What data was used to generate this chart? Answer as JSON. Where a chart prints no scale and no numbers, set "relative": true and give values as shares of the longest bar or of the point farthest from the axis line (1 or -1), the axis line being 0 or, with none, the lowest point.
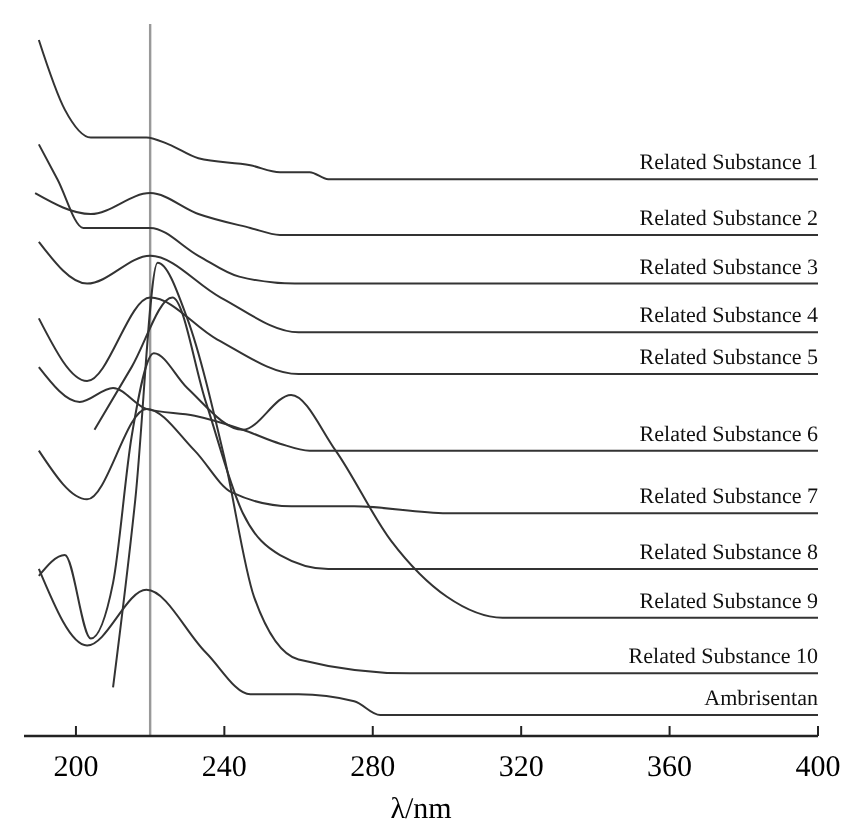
{
  "chart_data": {
    "type": "line",
    "relative": true,
    "xlabel": "λ/nm",
    "xlim": [
      186,
      400
    ],
    "xticks": [
      200,
      240,
      280,
      320,
      360,
      400
    ],
    "grid": false,
    "ref_lines": [
      {
        "axis": "x",
        "value": 220,
        "color": "#999999"
      }
    ],
    "series": [
      {
        "name": "Related Substance 1",
        "color": "#333333",
        "x": [
          190,
          197,
          204,
          212,
          219,
          225,
          233,
          247,
          255,
          263,
          268,
          400
        ],
        "values": [
          1.0,
          0.9,
          0.86,
          0.86,
          0.86,
          0.85,
          0.83,
          0.82,
          0.81,
          0.81,
          0.8,
          0.8
        ]
      },
      {
        "name": "Related Substance 2",
        "color": "#333333",
        "x": [
          189,
          204,
          220,
          233,
          247,
          255,
          400
        ],
        "values": [
          0.78,
          0.75,
          0.78,
          0.75,
          0.73,
          0.72,
          0.72
        ]
      },
      {
        "name": "Related Substance 3",
        "color": "#333333",
        "x": [
          190,
          195,
          202,
          220,
          233,
          244,
          259,
          400
        ],
        "values": [
          0.85,
          0.8,
          0.73,
          0.73,
          0.69,
          0.66,
          0.65,
          0.65
        ]
      },
      {
        "name": "Related Substance 4",
        "color": "#333333",
        "x": [
          190,
          203,
          220,
          239,
          260,
          400
        ],
        "values": [
          0.71,
          0.65,
          0.69,
          0.63,
          0.58,
          0.58
        ]
      },
      {
        "name": "Related Substance 5",
        "color": "#333333",
        "x": [
          190,
          203,
          220,
          238,
          260,
          400
        ],
        "values": [
          0.6,
          0.51,
          0.63,
          0.57,
          0.52,
          0.52
        ]
      },
      {
        "name": "Related Substance 6",
        "color": "#333333",
        "x": [
          190,
          201,
          210,
          219,
          232,
          245,
          255,
          263,
          400
        ],
        "values": [
          0.53,
          0.48,
          0.5,
          0.47,
          0.46,
          0.44,
          0.42,
          0.41,
          0.41
        ]
      },
      {
        "name": "Related Substance 7",
        "color": "#333333",
        "x": [
          190,
          203,
          219,
          232,
          242,
          258,
          275,
          300,
          400
        ],
        "values": [
          0.41,
          0.34,
          0.47,
          0.41,
          0.35,
          0.33,
          0.33,
          0.32,
          0.32
        ]
      },
      {
        "name": "Related Substance 8",
        "color": "#333333",
        "x": [
          205,
          215,
          226,
          235,
          245,
          255,
          268,
          400
        ],
        "values": [
          0.44,
          0.53,
          0.63,
          0.48,
          0.32,
          0.26,
          0.24,
          0.24
        ]
      },
      {
        "name": "Related Substance 9",
        "color": "#333333",
        "x": [
          190,
          197,
          204,
          210,
          215,
          221,
          230,
          245,
          258,
          270,
          285,
          300,
          315,
          400
        ],
        "values": [
          0.23,
          0.26,
          0.14,
          0.22,
          0.43,
          0.55,
          0.5,
          0.44,
          0.49,
          0.41,
          0.28,
          0.2,
          0.17,
          0.17
        ]
      },
      {
        "name": "Related Substance 10",
        "color": "#333333",
        "x": [
          210,
          216,
          222,
          230,
          240,
          248,
          260,
          290,
          400
        ],
        "values": [
          0.07,
          0.34,
          0.68,
          0.6,
          0.4,
          0.2,
          0.11,
          0.09,
          0.09
        ]
      },
      {
        "name": "Ambrisentan",
        "color": "#333333",
        "x": [
          190,
          203,
          219,
          235,
          247,
          260,
          275,
          282,
          400
        ],
        "values": [
          0.24,
          0.13,
          0.21,
          0.12,
          0.06,
          0.06,
          0.05,
          0.03,
          0.03
        ]
      }
    ]
  }
}
